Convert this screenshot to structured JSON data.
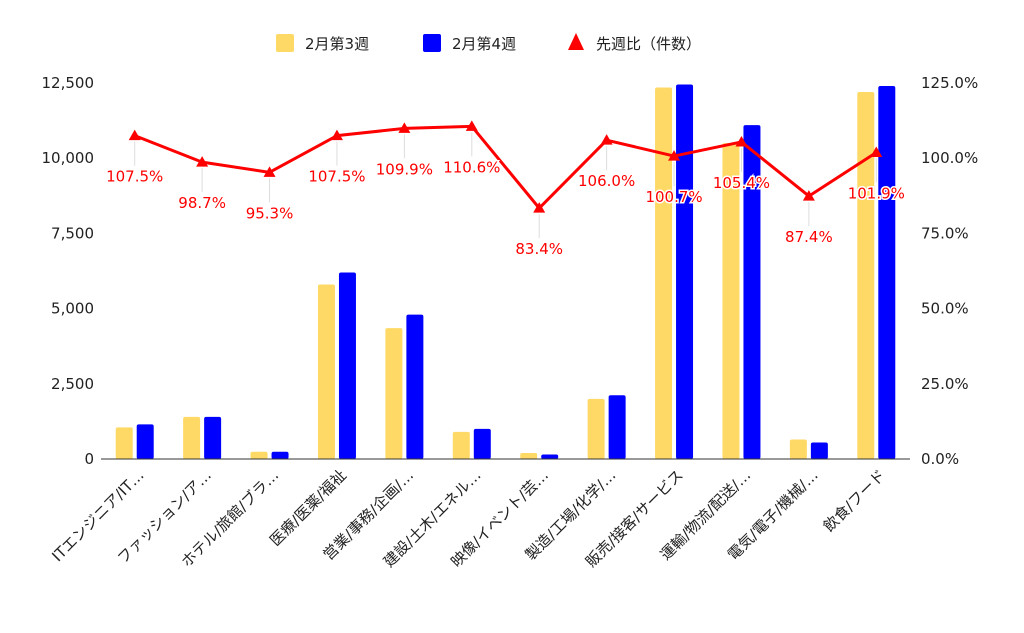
{
  "chart_data": {
    "type": "bar",
    "categories": [
      "ITエンジニア/IT…",
      "ファッション/ア…",
      "ホテル/旅館/ブラ…",
      "医療/医薬/福祉",
      "営業/事務/企画/…",
      "建設/土木/エネル…",
      "映像/イベント/芸…",
      "製造/工場/化学/…",
      "販売/接客/サービス",
      "運輸/物流/配送/…",
      "電気/電子/機械/…",
      "飲食/フード"
    ],
    "series": [
      {
        "name": "2月第3週",
        "type": "bar",
        "axis": "left",
        "color": "#ffd966",
        "values": [
          1050,
          1400,
          240,
          5800,
          4350,
          900,
          200,
          2000,
          12350,
          10500,
          650,
          12200
        ]
      },
      {
        "name": "2月第4週",
        "type": "bar",
        "axis": "left",
        "color": "#0000ff",
        "values": [
          1150,
          1400,
          240,
          6200,
          4800,
          1000,
          150,
          2120,
          12450,
          11100,
          550,
          12400
        ]
      },
      {
        "name": "先週比（件数）",
        "type": "line",
        "axis": "right",
        "color": "#ff0000",
        "marker": "triangle",
        "values": [
          107.5,
          98.7,
          95.3,
          107.5,
          109.9,
          110.6,
          83.4,
          106.0,
          100.7,
          105.4,
          87.4,
          101.9
        ],
        "labels": [
          "107.5%",
          "98.7%",
          "95.3%",
          "107.5%",
          "109.9%",
          "110.6%",
          "83.4%",
          "106.0%",
          "100.7%",
          "105.4%",
          "87.4%",
          "101.9%"
        ]
      }
    ],
    "y_left": {
      "min": 0,
      "max": 12500,
      "ticks": [
        "0",
        "2,500",
        "5,000",
        "7,500",
        "10,000",
        "12,500"
      ]
    },
    "y_right": {
      "min": 0,
      "max": 125,
      "ticks": [
        "0.0%",
        "25.0%",
        "50.0%",
        "75.0%",
        "100.0%",
        "125.0%"
      ]
    },
    "legend_position": "top",
    "grid": false
  }
}
